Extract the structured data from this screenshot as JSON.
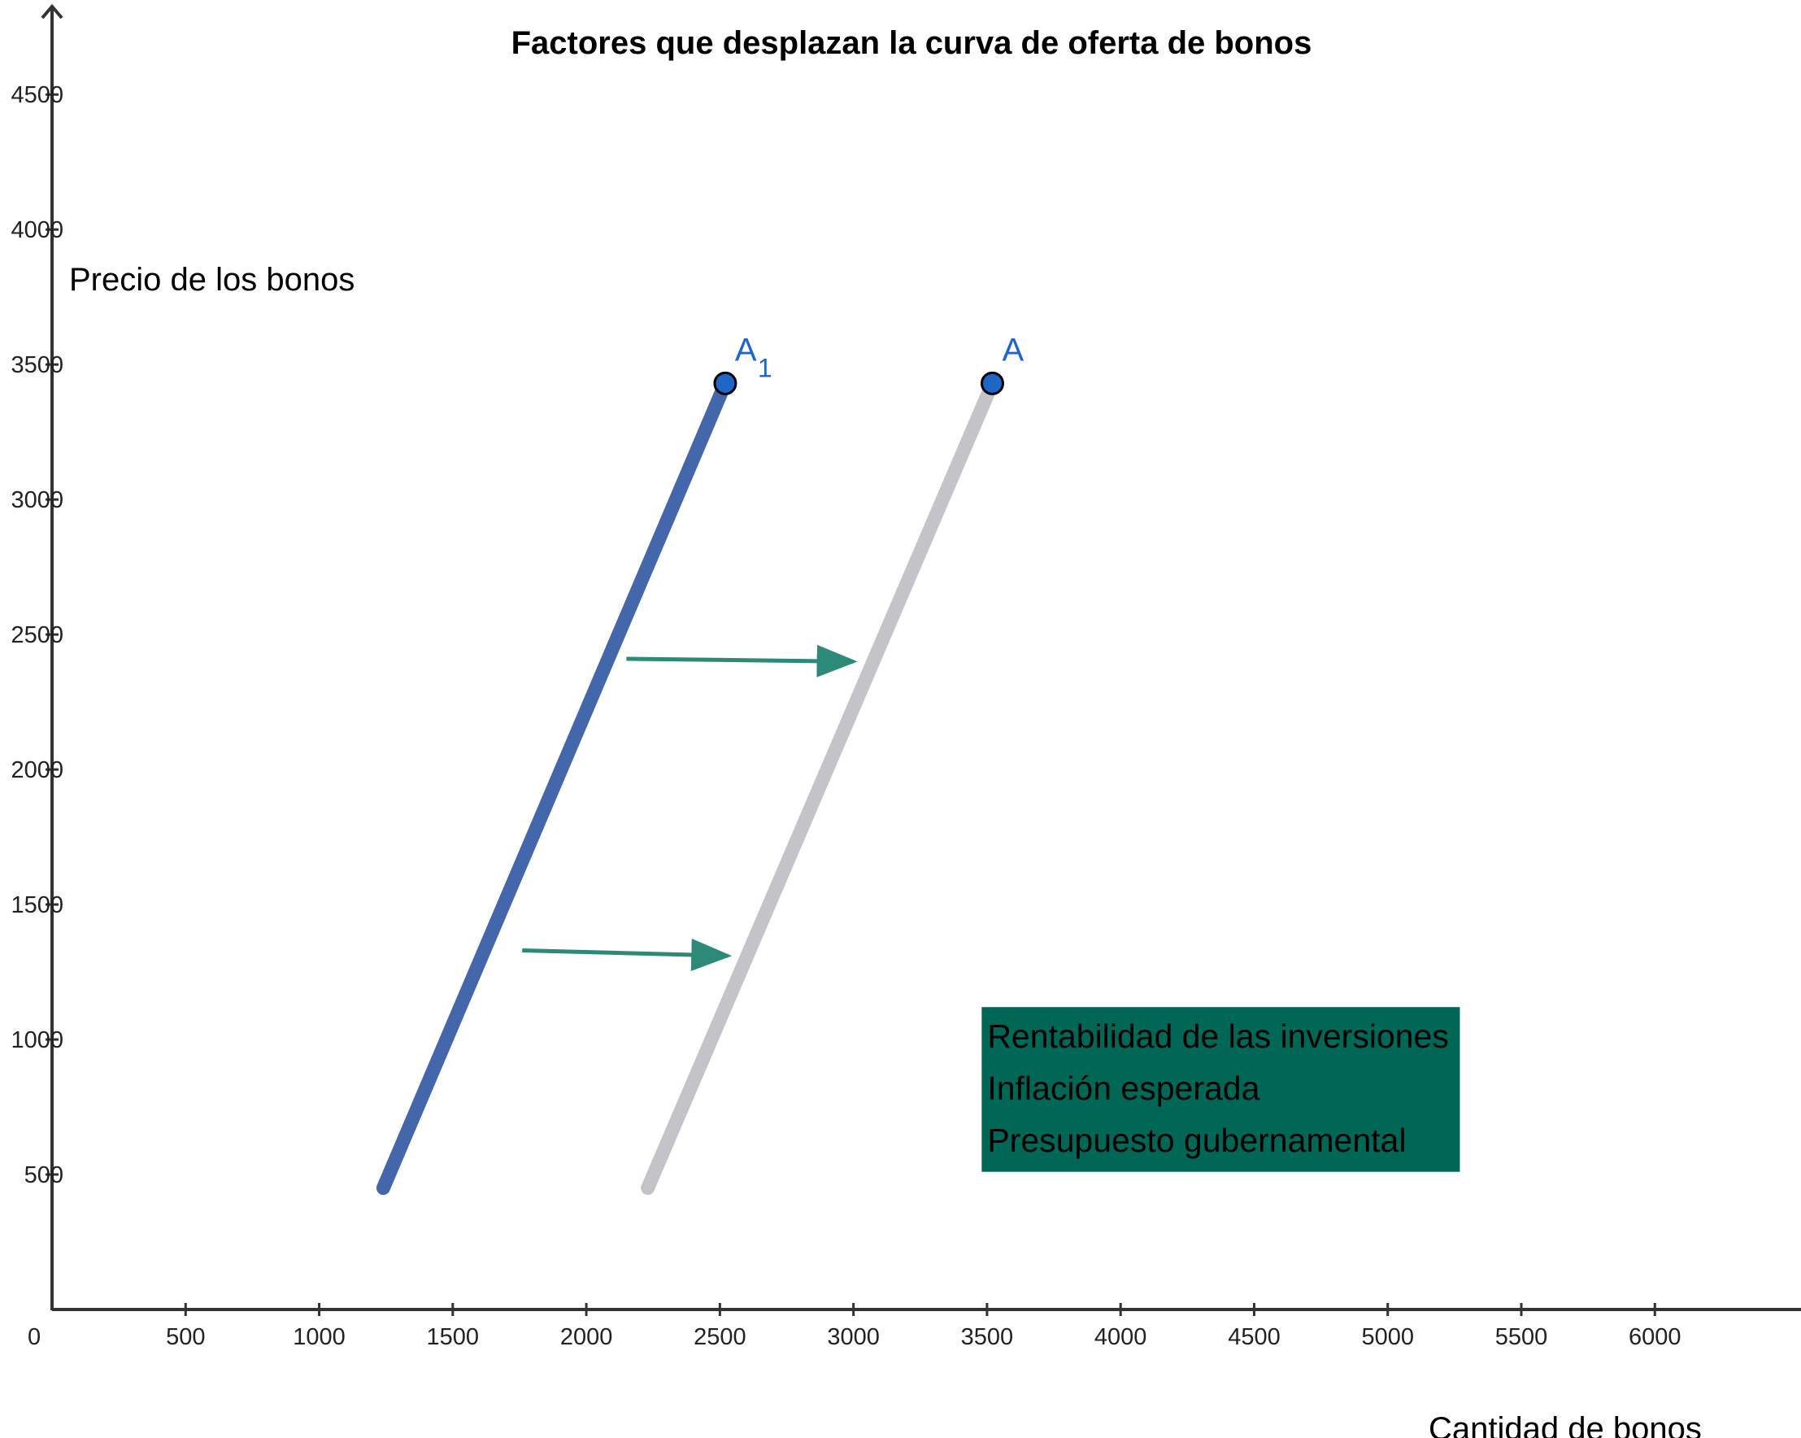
{
  "colors": {
    "axis": "#333333",
    "curve_shifted": "#4466aa",
    "curve_original": "#c4c4c8",
    "point": "#1e66c8",
    "point_label": "#1e66c8",
    "arrow": "#2e8a78",
    "box_fill": "#006655"
  },
  "chart_data": {
    "type": "line",
    "title": "Factores que desplazan la curva de oferta de bonos",
    "xlabel": "Cantidad de bonos",
    "ylabel": "Precio de los bonos",
    "xlim": [
      0,
      6300
    ],
    "ylim": [
      0,
      4570
    ],
    "x_ticks": [
      0,
      500,
      1000,
      1500,
      2000,
      2500,
      3000,
      3500,
      4000,
      4500,
      5000,
      5500,
      6000
    ],
    "y_ticks": [
      500,
      1000,
      1500,
      2000,
      2500,
      3000,
      3500,
      4000,
      4500
    ],
    "grid": false,
    "series": [
      {
        "name": "A1",
        "points": [
          [
            1240,
            450
          ],
          [
            2520,
            3430
          ]
        ]
      },
      {
        "name": "A",
        "points": [
          [
            2230,
            450
          ],
          [
            3520,
            3430
          ]
        ]
      }
    ],
    "points": [
      {
        "label": "A",
        "subscript": "1",
        "x": 2520,
        "y": 3430
      },
      {
        "label": "A",
        "subscript": "",
        "x": 3520,
        "y": 3430
      }
    ],
    "arrows": [
      {
        "from": [
          2150,
          2410
        ],
        "to": [
          3000,
          2400
        ]
      },
      {
        "from": [
          1760,
          1330
        ],
        "to": [
          2530,
          1310
        ]
      }
    ],
    "annotation_box": {
      "lines": [
        "Rentabilidad de las inversiones",
        "Inflación esperada",
        "Presupuesto gubernamental"
      ],
      "x_range": [
        3480,
        5270
      ],
      "y_range": [
        510,
        1120
      ]
    }
  }
}
